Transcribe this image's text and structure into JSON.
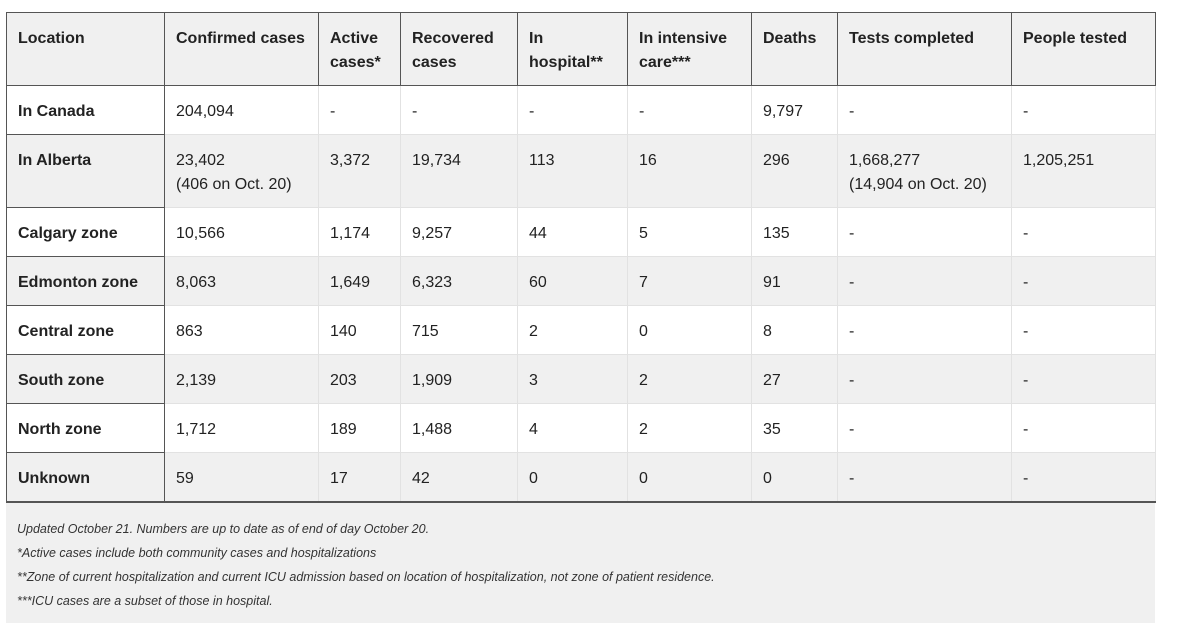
{
  "headers": [
    "Location",
    "Confirmed cases",
    "Active cases*",
    "Recovered cases",
    "In hospital**",
    "In intensive care***",
    "Deaths",
    "Tests completed",
    "People tested"
  ],
  "rows": [
    {
      "location": "In Canada",
      "confirmed": "204,094",
      "confirmed_note": "",
      "active": "-",
      "recovered": "-",
      "hospital": "-",
      "icu": "-",
      "deaths": "9,797",
      "tests": "-",
      "tests_note": "",
      "people": "-"
    },
    {
      "location": "In Alberta",
      "confirmed": "23,402",
      "confirmed_note": "(406 on Oct. 20)",
      "active": "3,372",
      "recovered": "19,734",
      "hospital": "113",
      "icu": "16",
      "deaths": "296",
      "tests": "1,668,277",
      "tests_note": "(14,904 on Oct. 20)",
      "people": "1,205,251"
    },
    {
      "location": "Calgary zone",
      "confirmed": "10,566",
      "confirmed_note": "",
      "active": "1,174",
      "recovered": "9,257",
      "hospital": "44",
      "icu": "5",
      "deaths": "135",
      "tests": "-",
      "tests_note": "",
      "people": "-"
    },
    {
      "location": "Edmonton zone",
      "confirmed": "8,063",
      "confirmed_note": "",
      "active": "1,649",
      "recovered": "6,323",
      "hospital": "60",
      "icu": "7",
      "deaths": "91",
      "tests": "-",
      "tests_note": "",
      "people": "-"
    },
    {
      "location": "Central zone",
      "confirmed": "863",
      "confirmed_note": "",
      "active": "140",
      "recovered": "715",
      "hospital": "2",
      "icu": "0",
      "deaths": "8",
      "tests": "-",
      "tests_note": "",
      "people": "-"
    },
    {
      "location": "South zone",
      "confirmed": "2,139",
      "confirmed_note": "",
      "active": "203",
      "recovered": "1,909",
      "hospital": "3",
      "icu": "2",
      "deaths": "27",
      "tests": "-",
      "tests_note": "",
      "people": "-"
    },
    {
      "location": "North zone",
      "confirmed": "1,712",
      "confirmed_note": "",
      "active": "189",
      "recovered": "1,488",
      "hospital": "4",
      "icu": "2",
      "deaths": "35",
      "tests": "-",
      "tests_note": "",
      "people": "-"
    },
    {
      "location": "Unknown",
      "confirmed": "59",
      "confirmed_note": "",
      "active": "17",
      "recovered": "42",
      "hospital": "0",
      "icu": "0",
      "deaths": "0",
      "tests": "-",
      "tests_note": "",
      "people": "-"
    }
  ],
  "footnotes": [
    "Updated October 21. Numbers are up to date as of end of day October 20.",
    "*Active cases include both community cases and hospitalizations",
    "**Zone of current hospitalization and current ICU admission based on location of hospitalization, not zone of patient residence.",
    "***ICU cases are a subset of those in hospital."
  ]
}
